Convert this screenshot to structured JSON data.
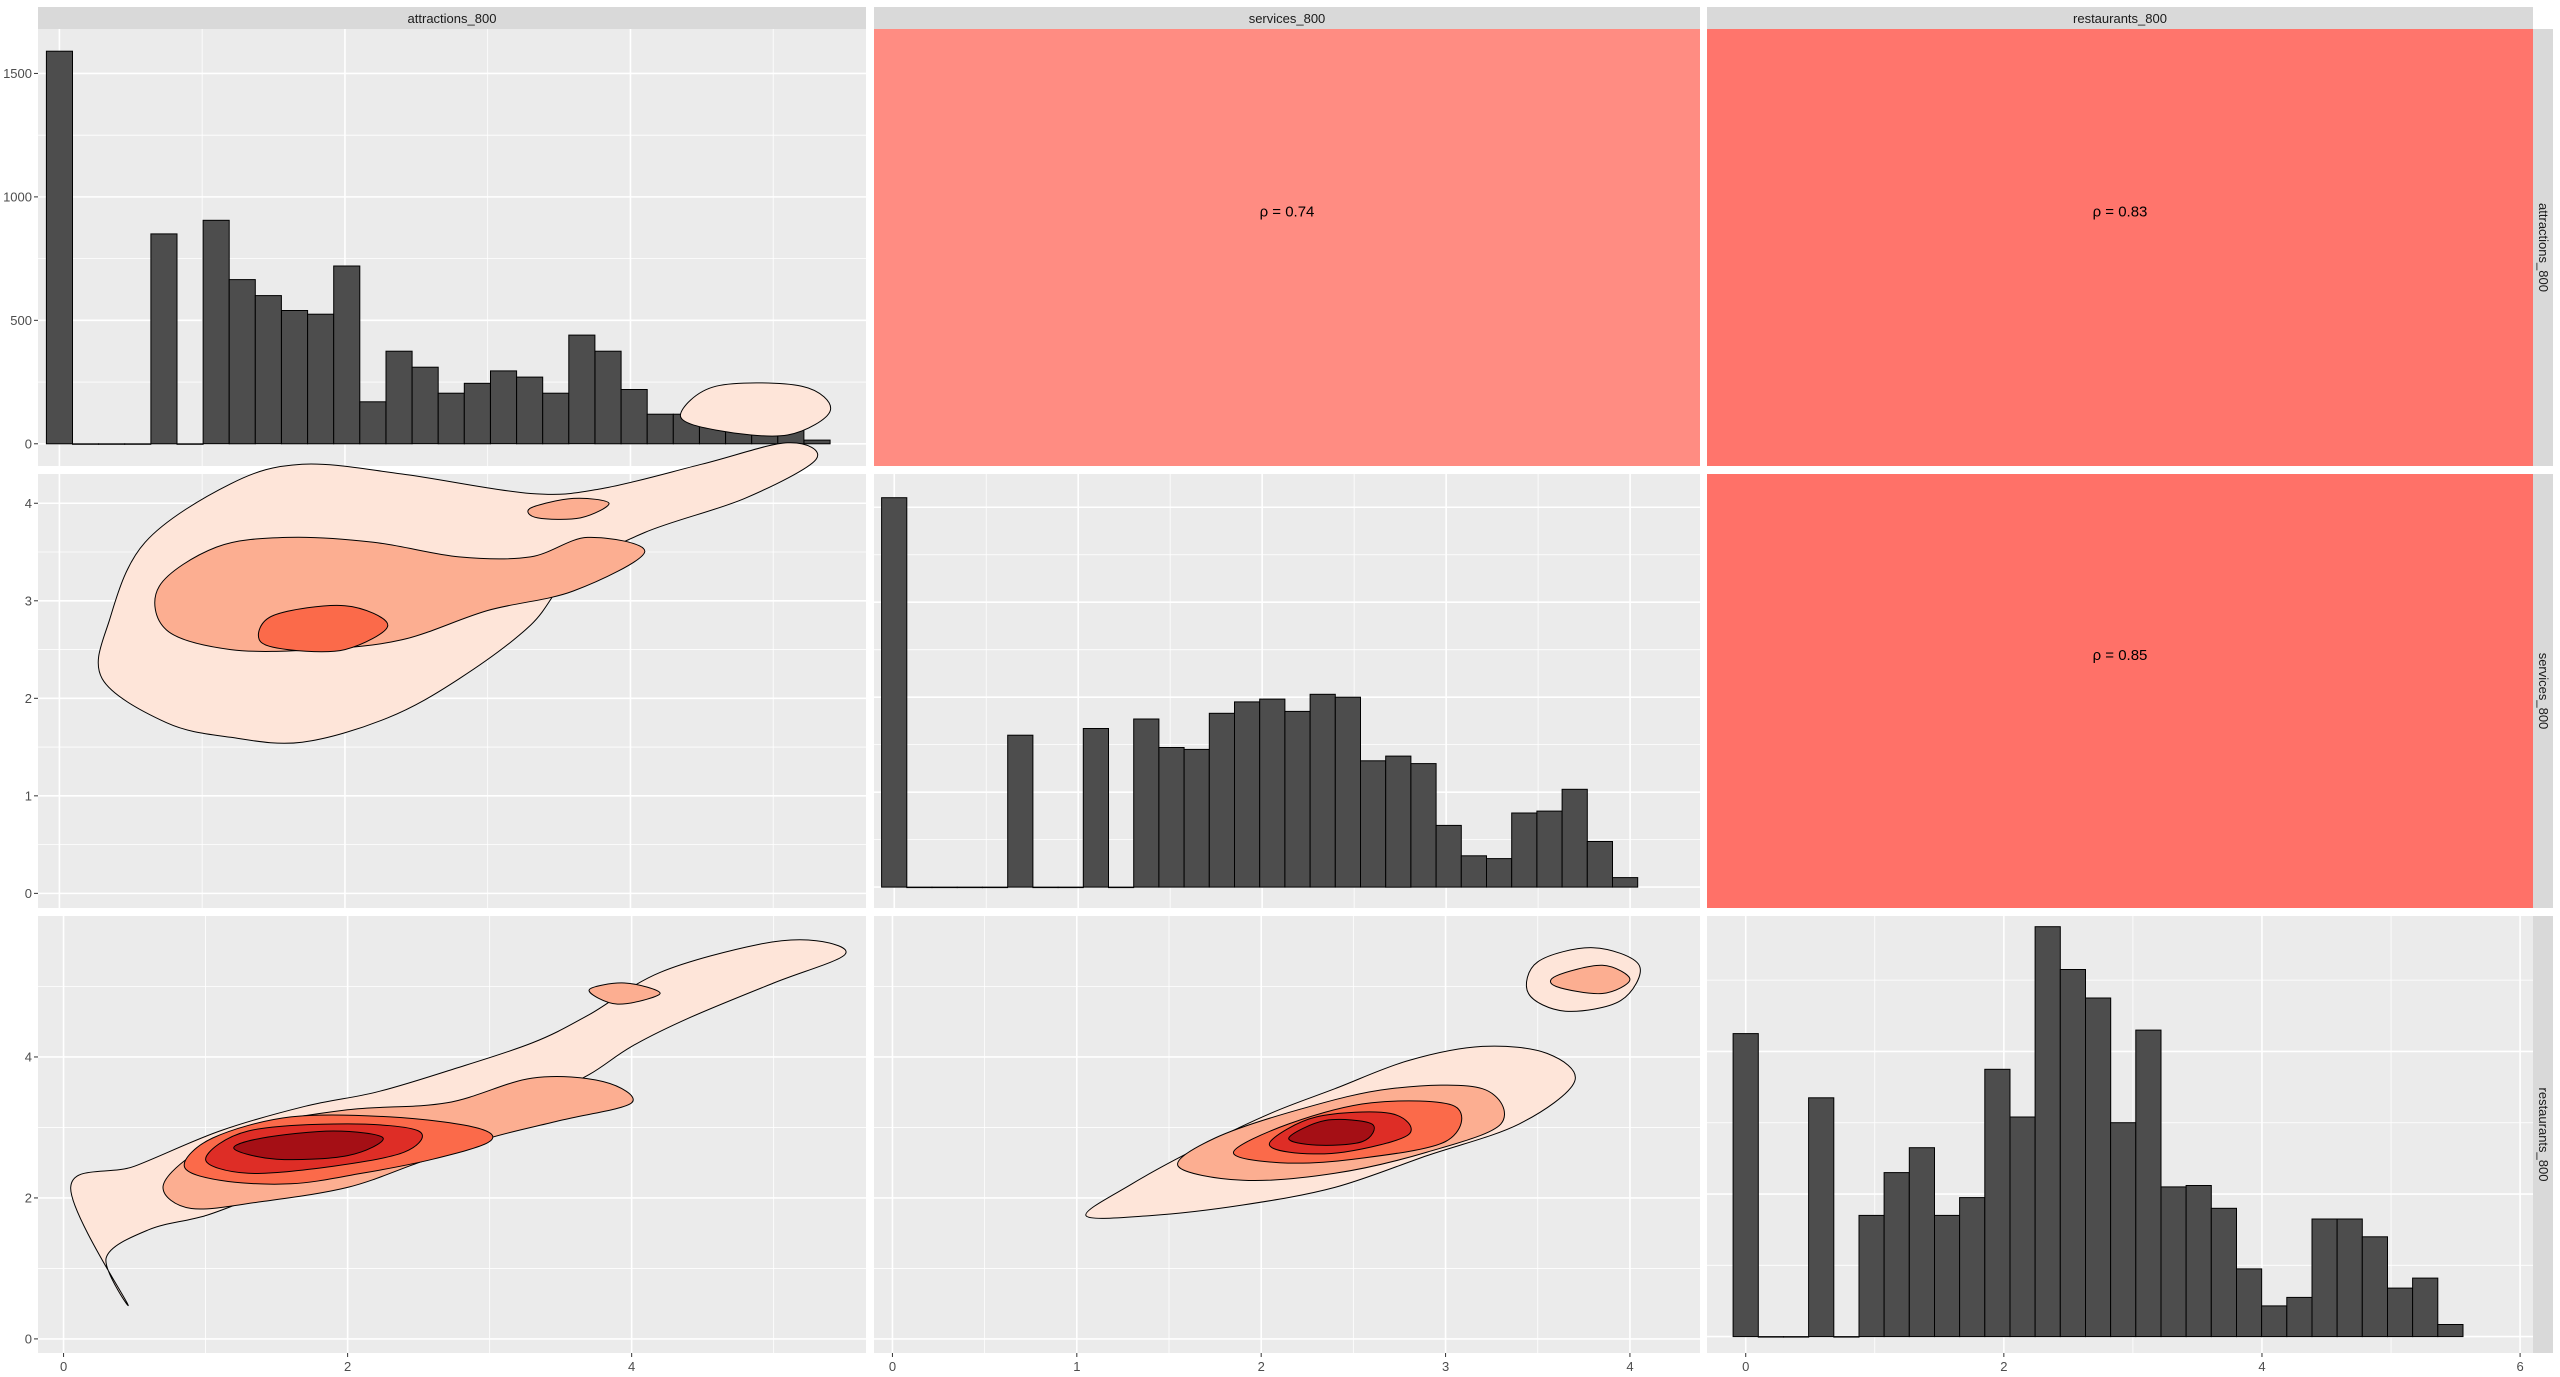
{
  "chart_data": {
    "type": "scatter-matrix",
    "variables": [
      "attractions_800",
      "services_800",
      "restaurants_800"
    ],
    "panel_bg": "#ebebeb",
    "grid_color": "#ffffff",
    "strip_bg": "#d9d9d9",
    "bar_fill": "#4d4d4d",
    "density_colors": [
      "#fee5d9",
      "#fcae91",
      "#fb6a4a",
      "#de2d26",
      "#a50f15"
    ],
    "correlations": [
      {
        "row": 0,
        "col": 1,
        "label": "ρ = 0.74",
        "value": 0.74,
        "fill": "#ff8c82"
      },
      {
        "row": 0,
        "col": 2,
        "label": "ρ = 0.83",
        "value": 0.83,
        "fill": "#ff756c"
      },
      {
        "row": 1,
        "col": 2,
        "label": "ρ = 0.85",
        "value": 0.85,
        "fill": "#ff7168"
      }
    ],
    "histograms": [
      {
        "variable": "attractions_800",
        "binwidth": 0.183,
        "x0": 0,
        "counts": [
          1590,
          0,
          0,
          0,
          850,
          0,
          905,
          665,
          600,
          540,
          525,
          720,
          170,
          375,
          310,
          205,
          245,
          295,
          270,
          205,
          440,
          375,
          220,
          120,
          120,
          110,
          155,
          55,
          85,
          15
        ],
        "xlim": [
          -0.15,
          5.65
        ],
        "ylim": [
          -90,
          1680
        ],
        "x_ticks": [
          0,
          2,
          4
        ],
        "y_ticks": [
          0,
          500,
          1000,
          1500
        ]
      },
      {
        "variable": "services_800",
        "binwidth": 0.137,
        "x0": 0,
        "counts": [
          4.1,
          0,
          0,
          0,
          0,
          1.6,
          0,
          0,
          1.67,
          0,
          1.77,
          1.47,
          1.45,
          1.83,
          1.95,
          1.98,
          1.85,
          2.03,
          2.0,
          1.33,
          1.38,
          1.3,
          0.65,
          0.33,
          0.3,
          0.78,
          0.8,
          1.03,
          0.48,
          0.1
        ],
        "xlim": [
          -0.11,
          4.38
        ],
        "ylim": [
          -0.22,
          4.35
        ],
        "x_ticks": [
          0,
          1,
          2,
          3,
          4
        ],
        "y_ticks": [
          0,
          1,
          2,
          3,
          4
        ]
      },
      {
        "variable": "restaurants_800",
        "binwidth": 0.195,
        "x0": 0,
        "counts": [
          4.25,
          0,
          0,
          3.35,
          0,
          1.7,
          2.3,
          2.65,
          1.7,
          1.95,
          3.75,
          3.08,
          5.75,
          5.15,
          4.75,
          3.0,
          4.3,
          2.1,
          2.12,
          1.8,
          0.95,
          0.43,
          0.55,
          1.65,
          1.65,
          1.4,
          0.68,
          0.82,
          0.17
        ],
        "xlim": [
          -0.3,
          6.1
        ],
        "ylim": [
          -0.23,
          5.9
        ],
        "x_ticks": [
          0,
          2,
          4,
          6
        ],
        "y_ticks": [
          0,
          2,
          4
        ]
      }
    ],
    "density_panels": [
      {
        "row": 1,
        "col": 0,
        "xlim": [
          -0.15,
          5.65
        ],
        "ylim": [
          -0.15,
          4.3
        ],
        "contours": [
          {
            "level": 0,
            "points": [
              [
                0.6,
                3.6
              ],
              [
                1.2,
                4.2
              ],
              [
                1.7,
                4.4
              ],
              [
                2.4,
                4.3
              ],
              [
                3.3,
                4.1
              ],
              [
                3.8,
                4.15
              ],
              [
                4.5,
                4.4
              ],
              [
                5.1,
                4.62
              ],
              [
                5.3,
                4.45
              ],
              [
                4.8,
                4.05
              ],
              [
                4.1,
                3.7
              ],
              [
                3.6,
                3.3
              ],
              [
                3.3,
                2.75
              ],
              [
                2.8,
                2.2
              ],
              [
                2.3,
                1.8
              ],
              [
                1.7,
                1.55
              ],
              [
                1.2,
                1.6
              ],
              [
                0.75,
                1.75
              ],
              [
                0.3,
                2.2
              ],
              [
                0.35,
                2.8
              ],
              [
                0.6,
                3.6
              ]
            ]
          },
          {
            "level": 0,
            "points": [
              [
                4.35,
                4.9
              ],
              [
                4.6,
                5.2
              ],
              [
                5.2,
                5.2
              ],
              [
                5.4,
                4.95
              ],
              [
                5.1,
                4.7
              ],
              [
                4.6,
                4.75
              ],
              [
                4.35,
                4.9
              ]
            ]
          },
          {
            "level": 1,
            "points": [
              [
                0.7,
                3.15
              ],
              [
                1.1,
                3.55
              ],
              [
                1.6,
                3.65
              ],
              [
                2.2,
                3.6
              ],
              [
                2.8,
                3.45
              ],
              [
                3.3,
                3.45
              ],
              [
                3.7,
                3.65
              ],
              [
                4.1,
                3.5
              ],
              [
                3.6,
                3.1
              ],
              [
                3.0,
                2.9
              ],
              [
                2.4,
                2.6
              ],
              [
                1.8,
                2.5
              ],
              [
                1.2,
                2.5
              ],
              [
                0.75,
                2.7
              ],
              [
                0.7,
                3.15
              ]
            ]
          },
          {
            "level": 1,
            "points": [
              [
                3.3,
                3.95
              ],
              [
                3.6,
                4.05
              ],
              [
                3.85,
                4.0
              ],
              [
                3.65,
                3.85
              ],
              [
                3.35,
                3.85
              ],
              [
                3.3,
                3.95
              ]
            ]
          },
          {
            "level": 2,
            "points": [
              [
                1.4,
                2.6
              ],
              [
                1.5,
                2.85
              ],
              [
                2.0,
                2.95
              ],
              [
                2.3,
                2.75
              ],
              [
                2.0,
                2.5
              ],
              [
                1.6,
                2.5
              ],
              [
                1.4,
                2.6
              ]
            ]
          }
        ]
      },
      {
        "row": 2,
        "col": 0,
        "xlim": [
          -0.18,
          5.65
        ],
        "ylim": [
          -0.2,
          6.0
        ],
        "contours": [
          {
            "level": 0,
            "points": [
              [
                0.05,
                2.15
              ],
              [
                0.5,
                2.45
              ],
              [
                1.1,
                2.95
              ],
              [
                1.7,
                3.3
              ],
              [
                2.2,
                3.5
              ],
              [
                2.7,
                3.8
              ],
              [
                3.3,
                4.2
              ],
              [
                3.7,
                4.6
              ],
              [
                4.2,
                5.2
              ],
              [
                4.9,
                5.6
              ],
              [
                5.3,
                5.65
              ],
              [
                5.5,
                5.45
              ],
              [
                5.0,
                5.05
              ],
              [
                4.4,
                4.55
              ],
              [
                4.0,
                4.15
              ],
              [
                3.7,
                3.75
              ],
              [
                3.3,
                3.35
              ],
              [
                2.8,
                2.85
              ],
              [
                2.2,
                2.4
              ],
              [
                1.5,
                2.1
              ],
              [
                1.0,
                1.75
              ],
              [
                0.6,
                1.55
              ],
              [
                0.3,
                1.15
              ],
              [
                0.45,
                0.5
              ],
              [
                0.05,
                2.15
              ]
            ]
          },
          {
            "level": 1,
            "points": [
              [
                0.7,
                2.15
              ],
              [
                0.9,
                2.6
              ],
              [
                1.3,
                3.0
              ],
              [
                2.0,
                3.25
              ],
              [
                2.7,
                3.35
              ],
              [
                3.3,
                3.7
              ],
              [
                3.8,
                3.65
              ],
              [
                4.0,
                3.35
              ],
              [
                3.5,
                3.1
              ],
              [
                3.0,
                2.85
              ],
              [
                2.5,
                2.5
              ],
              [
                2.0,
                2.15
              ],
              [
                1.4,
                1.95
              ],
              [
                0.9,
                1.85
              ],
              [
                0.7,
                2.15
              ]
            ]
          },
          {
            "level": 1,
            "points": [
              [
                3.7,
                4.95
              ],
              [
                3.95,
                5.05
              ],
              [
                4.2,
                4.9
              ],
              [
                3.9,
                4.75
              ],
              [
                3.7,
                4.95
              ]
            ]
          },
          {
            "level": 2,
            "points": [
              [
                0.85,
                2.45
              ],
              [
                1.05,
                2.85
              ],
              [
                1.6,
                3.15
              ],
              [
                2.3,
                3.15
              ],
              [
                2.9,
                3.0
              ],
              [
                3.0,
                2.8
              ],
              [
                2.6,
                2.55
              ],
              [
                2.1,
                2.35
              ],
              [
                1.6,
                2.2
              ],
              [
                1.1,
                2.25
              ],
              [
                0.85,
                2.45
              ]
            ]
          },
          {
            "level": 3,
            "points": [
              [
                1.0,
                2.55
              ],
              [
                1.3,
                2.95
              ],
              [
                2.0,
                3.05
              ],
              [
                2.5,
                2.95
              ],
              [
                2.4,
                2.65
              ],
              [
                1.9,
                2.45
              ],
              [
                1.3,
                2.35
              ],
              [
                1.0,
                2.55
              ]
            ]
          },
          {
            "level": 4,
            "points": [
              [
                1.2,
                2.7
              ],
              [
                1.4,
                2.85
              ],
              [
                1.9,
                2.95
              ],
              [
                2.25,
                2.85
              ],
              [
                2.0,
                2.6
              ],
              [
                1.5,
                2.55
              ],
              [
                1.2,
                2.7
              ]
            ]
          }
        ]
      },
      {
        "row": 2,
        "col": 1,
        "xlim": [
          -0.1,
          4.38
        ],
        "ylim": [
          -0.2,
          6.0
        ],
        "contours": [
          {
            "level": 0,
            "points": [
              [
                1.05,
                1.75
              ],
              [
                1.3,
                2.2
              ],
              [
                1.65,
                2.7
              ],
              [
                2.05,
                3.2
              ],
              [
                2.4,
                3.55
              ],
              [
                2.8,
                3.95
              ],
              [
                3.2,
                4.15
              ],
              [
                3.55,
                4.05
              ],
              [
                3.7,
                3.65
              ],
              [
                3.4,
                3.05
              ],
              [
                2.9,
                2.6
              ],
              [
                2.4,
                2.15
              ],
              [
                1.9,
                1.9
              ],
              [
                1.4,
                1.75
              ],
              [
                1.05,
                1.75
              ]
            ]
          },
          {
            "level": 0,
            "points": [
              [
                3.5,
                5.35
              ],
              [
                3.8,
                5.55
              ],
              [
                4.05,
                5.3
              ],
              [
                3.95,
                4.8
              ],
              [
                3.65,
                4.65
              ],
              [
                3.45,
                4.9
              ],
              [
                3.5,
                5.35
              ]
            ]
          },
          {
            "level": 1,
            "points": [
              [
                1.55,
                2.45
              ],
              [
                1.75,
                2.85
              ],
              [
                2.2,
                3.25
              ],
              [
                2.7,
                3.55
              ],
              [
                3.2,
                3.55
              ],
              [
                3.3,
                3.05
              ],
              [
                2.9,
                2.65
              ],
              [
                2.4,
                2.35
              ],
              [
                1.9,
                2.25
              ],
              [
                1.55,
                2.45
              ]
            ]
          },
          {
            "level": 1,
            "points": [
              [
                3.6,
                5.15
              ],
              [
                3.85,
                5.3
              ],
              [
                4.0,
                5.1
              ],
              [
                3.85,
                4.9
              ],
              [
                3.6,
                5.0
              ],
              [
                3.6,
                5.15
              ]
            ]
          },
          {
            "level": 2,
            "points": [
              [
                1.85,
                2.65
              ],
              [
                2.15,
                3.05
              ],
              [
                2.6,
                3.35
              ],
              [
                3.05,
                3.3
              ],
              [
                3.0,
                2.8
              ],
              [
                2.5,
                2.55
              ],
              [
                2.1,
                2.5
              ],
              [
                1.85,
                2.65
              ]
            ]
          },
          {
            "level": 3,
            "points": [
              [
                2.05,
                2.8
              ],
              [
                2.3,
                3.15
              ],
              [
                2.7,
                3.2
              ],
              [
                2.8,
                2.9
              ],
              [
                2.45,
                2.65
              ],
              [
                2.15,
                2.65
              ],
              [
                2.05,
                2.8
              ]
            ]
          },
          {
            "level": 4,
            "points": [
              [
                2.15,
                2.85
              ],
              [
                2.35,
                3.1
              ],
              [
                2.6,
                3.05
              ],
              [
                2.55,
                2.8
              ],
              [
                2.3,
                2.75
              ],
              [
                2.15,
                2.85
              ]
            ]
          }
        ]
      }
    ]
  }
}
